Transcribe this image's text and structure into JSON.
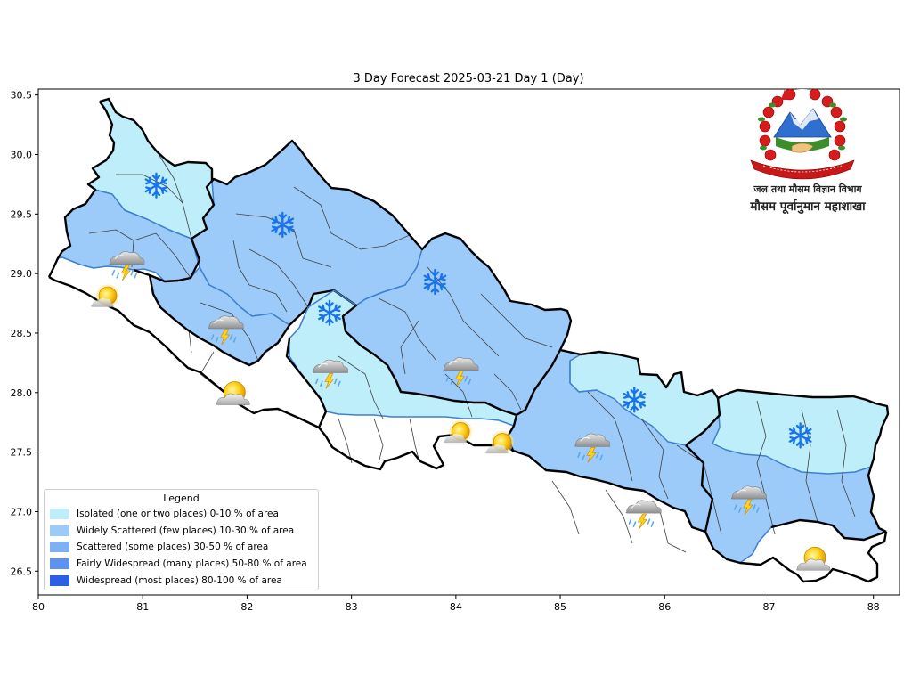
{
  "title": "3 Day Forecast 2025-03-21 Day 1 (Day)",
  "axes": {
    "x_ticks": [
      "80",
      "81",
      "82",
      "83",
      "84",
      "85",
      "86",
      "87",
      "88"
    ],
    "y_ticks": [
      "30.5",
      "30.0",
      "29.5",
      "29.0",
      "28.5",
      "28.0",
      "27.5",
      "27.0",
      "26.5"
    ],
    "xlim": [
      80,
      88.25
    ],
    "ylim": [
      26.3,
      30.55
    ]
  },
  "legend": {
    "title": "Legend",
    "items": [
      {
        "label": "Isolated (one or two places)  0-10 % of area",
        "color": "#bfeefb"
      },
      {
        "label": "Widely Scattered (few places) 10-30 % of area",
        "color": "#9ccbfa"
      },
      {
        "label": "Scattered (some places) 30-50  % of area",
        "color": "#7fb0f4"
      },
      {
        "label": "Fairly Widespread (many places) 50-80 % of area",
        "color": "#5c93f2"
      },
      {
        "label": "Widespread (most places) 80-100 % of area",
        "color": "#2c5fe4"
      }
    ]
  },
  "office": {
    "line1": "जल तथा मौसम विज्ञान विभाग",
    "line2": "मौसम पूर्वानुमान महाशाखा"
  },
  "colors": {
    "isolated": "#bfeefb",
    "widely_scattered": "#9ccbfa",
    "none": "#ffffff",
    "boundary": "#000000",
    "snow_icon": "#1a73e8"
  },
  "weather_icons": [
    {
      "type": "snow-icon",
      "lon": 81.13,
      "lat": 29.74
    },
    {
      "type": "snow-icon",
      "lon": 82.34,
      "lat": 29.41
    },
    {
      "type": "snow-icon",
      "lon": 83.8,
      "lat": 28.93
    },
    {
      "type": "snow-icon",
      "lon": 82.79,
      "lat": 28.67
    },
    {
      "type": "snow-icon",
      "lon": 85.71,
      "lat": 27.94
    },
    {
      "type": "snow-icon",
      "lon": 87.3,
      "lat": 27.64
    },
    {
      "type": "thunderstorm-icon",
      "lon": 80.83,
      "lat": 29.07
    },
    {
      "type": "thunderstorm-icon",
      "lon": 81.78,
      "lat": 28.53
    },
    {
      "type": "thunderstorm-icon",
      "lon": 82.78,
      "lat": 28.16
    },
    {
      "type": "thunderstorm-icon",
      "lon": 84.03,
      "lat": 28.18
    },
    {
      "type": "thunderstorm-icon",
      "lon": 85.29,
      "lat": 27.54
    },
    {
      "type": "thunderstorm-icon",
      "lon": 85.78,
      "lat": 26.98
    },
    {
      "type": "thunderstorm-icon",
      "lon": 86.79,
      "lat": 27.1
    },
    {
      "type": "sunny-icon",
      "lon": 80.65,
      "lat": 28.8
    },
    {
      "type": "sunny-icon",
      "lon": 84.03,
      "lat": 27.66
    },
    {
      "type": "sunny-icon",
      "lon": 84.43,
      "lat": 27.57
    },
    {
      "type": "partly-cloudy-icon",
      "lon": 81.88,
      "lat": 27.98
    },
    {
      "type": "partly-cloudy-icon",
      "lon": 87.44,
      "lat": 26.59
    }
  ]
}
